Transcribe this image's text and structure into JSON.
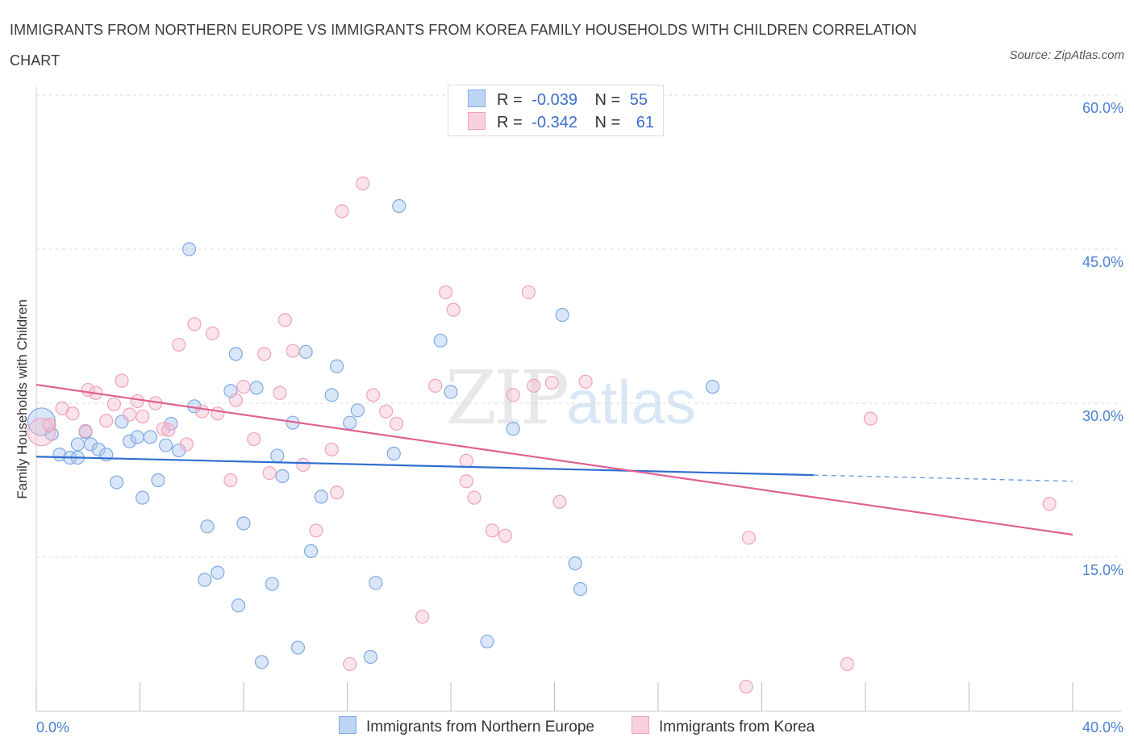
{
  "title": "IMMIGRANTS FROM NORTHERN EUROPE VS IMMIGRANTS FROM KOREA FAMILY HOUSEHOLDS WITH CHILDREN CORRELATION CHART",
  "source": "Source: ZipAtlas.com",
  "watermark": {
    "zip": "ZIP",
    "atlas": "atlas"
  },
  "legend": {
    "rows": [
      {
        "r_label": "R =",
        "r_value": "-0.039",
        "n_label": "N =",
        "n_value": "55"
      },
      {
        "r_label": "R =",
        "r_value": "-0.342",
        "n_label": "N =",
        "n_value": "61"
      }
    ]
  },
  "chart_data": {
    "type": "scatter",
    "title": "IMMIGRANTS FROM NORTHERN EUROPE VS IMMIGRANTS FROM KOREA FAMILY HOUSEHOLDS WITH CHILDREN CORRELATION CHART",
    "ylabel": "Family Households with Children",
    "xlim": [
      0,
      40
    ],
    "ylim": [
      0,
      60
    ],
    "y_ticks": [
      "60.0%",
      "45.0%",
      "30.0%",
      "15.0%"
    ],
    "y_tick_values": [
      60,
      45,
      30,
      15
    ],
    "x_ticks": [
      "0.0%",
      "40.0%"
    ],
    "x_tick_values": [
      0,
      40
    ],
    "grid": true,
    "legend_position": "top-center",
    "colors": {
      "northern_europe": "#a9c8f0",
      "northern_europe_line": "#2f6ed0",
      "korea": "#f5b9cc",
      "korea_line": "#e0608f",
      "tick_text": "#4a7fd0"
    },
    "series": [
      {
        "name": "Immigrants from Northern Europe",
        "r": -0.039,
        "n": 55,
        "trend": {
          "x0": 0,
          "y0": 24.8,
          "x1": 30,
          "y1": 23.0,
          "dashed_to_x": 40,
          "dashed_to_y": 22.4
        },
        "points": [
          [
            0.2,
            28.2
          ],
          [
            0.6,
            27.0
          ],
          [
            1.6,
            26.0
          ],
          [
            0.9,
            25.0
          ],
          [
            1.3,
            24.7
          ],
          [
            1.6,
            24.7
          ],
          [
            1.9,
            27.2
          ],
          [
            2.1,
            26.0
          ],
          [
            2.4,
            25.5
          ],
          [
            2.7,
            25.0
          ],
          [
            3.1,
            22.3
          ],
          [
            3.3,
            28.2
          ],
          [
            3.6,
            26.3
          ],
          [
            3.9,
            26.7
          ],
          [
            4.1,
            20.8
          ],
          [
            4.4,
            26.7
          ],
          [
            4.7,
            22.5
          ],
          [
            5.0,
            25.9
          ],
          [
            5.2,
            28.0
          ],
          [
            5.5,
            25.4
          ],
          [
            5.9,
            45.0
          ],
          [
            6.1,
            29.7
          ],
          [
            6.6,
            18.0
          ],
          [
            6.5,
            12.8
          ],
          [
            7.0,
            13.5
          ],
          [
            7.5,
            31.2
          ],
          [
            7.7,
            34.8
          ],
          [
            7.8,
            10.3
          ],
          [
            8.0,
            18.3
          ],
          [
            8.5,
            31.5
          ],
          [
            8.7,
            4.8
          ],
          [
            9.1,
            12.4
          ],
          [
            9.3,
            24.9
          ],
          [
            9.5,
            22.9
          ],
          [
            9.9,
            28.1
          ],
          [
            10.1,
            6.2
          ],
          [
            10.4,
            35.0
          ],
          [
            10.6,
            15.6
          ],
          [
            11.0,
            20.9
          ],
          [
            11.4,
            30.8
          ],
          [
            11.6,
            33.6
          ],
          [
            12.1,
            28.1
          ],
          [
            12.4,
            29.3
          ],
          [
            12.9,
            5.3
          ],
          [
            13.1,
            12.5
          ],
          [
            13.8,
            25.1
          ],
          [
            14.0,
            49.2
          ],
          [
            15.6,
            36.1
          ],
          [
            16.0,
            31.1
          ],
          [
            17.4,
            6.8
          ],
          [
            18.4,
            27.5
          ],
          [
            20.3,
            38.6
          ],
          [
            20.8,
            14.4
          ],
          [
            21.0,
            11.9
          ],
          [
            26.1,
            31.6
          ]
        ]
      },
      {
        "name": "Immigrants from Korea",
        "r": -0.342,
        "n": 61,
        "trend": {
          "x0": 0,
          "y0": 31.8,
          "x1": 40,
          "y1": 17.2
        },
        "points": [
          [
            0.2,
            27.2
          ],
          [
            0.5,
            27.9
          ],
          [
            1.0,
            29.5
          ],
          [
            1.4,
            29.0
          ],
          [
            1.9,
            27.3
          ],
          [
            2.0,
            31.3
          ],
          [
            2.3,
            31.0
          ],
          [
            2.7,
            28.3
          ],
          [
            3.0,
            29.9
          ],
          [
            3.3,
            32.2
          ],
          [
            3.6,
            28.9
          ],
          [
            3.9,
            30.2
          ],
          [
            4.1,
            28.7
          ],
          [
            4.6,
            30.0
          ],
          [
            4.9,
            27.5
          ],
          [
            5.1,
            27.4
          ],
          [
            5.5,
            35.7
          ],
          [
            5.8,
            26.0
          ],
          [
            6.1,
            37.7
          ],
          [
            6.4,
            29.2
          ],
          [
            6.8,
            36.8
          ],
          [
            7.0,
            29.0
          ],
          [
            7.5,
            22.5
          ],
          [
            7.7,
            30.3
          ],
          [
            8.0,
            31.6
          ],
          [
            8.4,
            26.5
          ],
          [
            8.8,
            34.8
          ],
          [
            9.0,
            23.2
          ],
          [
            9.4,
            31.0
          ],
          [
            9.6,
            38.1
          ],
          [
            9.9,
            35.1
          ],
          [
            10.3,
            24.0
          ],
          [
            10.8,
            17.6
          ],
          [
            11.4,
            25.5
          ],
          [
            11.6,
            21.3
          ],
          [
            11.8,
            48.7
          ],
          [
            12.1,
            4.6
          ],
          [
            12.6,
            51.4
          ],
          [
            13.0,
            30.8
          ],
          [
            13.5,
            29.2
          ],
          [
            13.9,
            28.0
          ],
          [
            14.9,
            9.2
          ],
          [
            15.4,
            31.7
          ],
          [
            15.8,
            40.8
          ],
          [
            16.1,
            39.1
          ],
          [
            16.6,
            24.4
          ],
          [
            16.6,
            22.4
          ],
          [
            16.9,
            20.8
          ],
          [
            17.6,
            17.6
          ],
          [
            18.1,
            17.1
          ],
          [
            18.4,
            30.8
          ],
          [
            19.0,
            40.8
          ],
          [
            19.2,
            31.7
          ],
          [
            19.9,
            32.0
          ],
          [
            20.2,
            20.4
          ],
          [
            21.2,
            32.1
          ],
          [
            27.4,
            2.4
          ],
          [
            27.5,
            16.9
          ],
          [
            31.3,
            4.6
          ],
          [
            32.2,
            28.5
          ],
          [
            39.1,
            20.2
          ]
        ]
      }
    ]
  }
}
